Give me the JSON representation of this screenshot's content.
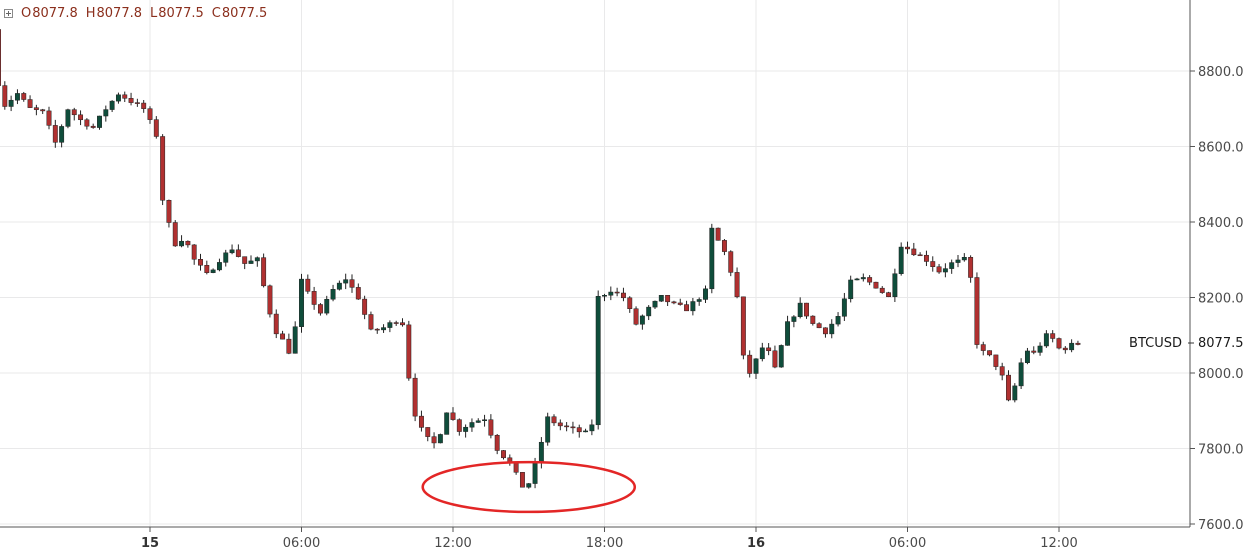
{
  "ohlc_legend": {
    "items": [
      {
        "key": "O",
        "value": "8077.8"
      },
      {
        "key": "H",
        "value": "8077.8"
      },
      {
        "key": "L",
        "value": "8077.5"
      },
      {
        "key": "C",
        "value": "8077.5"
      }
    ]
  },
  "price_label": {
    "symbol": "BTCUSD",
    "value": "8077.5"
  },
  "colors": {
    "up": "#0f4d3b",
    "down": "#b03030",
    "wick": "#222222",
    "annotation": "#e32626"
  },
  "chart_data": {
    "type": "candlestick",
    "title": "",
    "xlabel": "",
    "ylabel": "",
    "ylim": [
      7600,
      8900
    ],
    "y_ticks": [
      "7600.0",
      "7800.0",
      "8000.0",
      "8200.0",
      "8400.0",
      "8600.0",
      "8800.0"
    ],
    "x_ticks": [
      {
        "label": "15",
        "hour": 0,
        "bold": true
      },
      {
        "label": "06:00",
        "hour": 6,
        "bold": false
      },
      {
        "label": "12:00",
        "hour": 12,
        "bold": false
      },
      {
        "label": "18:00",
        "hour": 18,
        "bold": false
      },
      {
        "label": "16",
        "hour": 24,
        "bold": true
      },
      {
        "label": "06:00",
        "hour": 30,
        "bold": false
      },
      {
        "label": "12:00",
        "hour": 36,
        "bold": false
      }
    ],
    "xlim_hours": [
      -6,
      41.2
    ],
    "series": [
      {
        "price_path": [
          [
            -6.0,
            8910
          ],
          [
            -5.8,
            8780
          ],
          [
            -5.5,
            8710
          ],
          [
            -5.0,
            8740
          ],
          [
            -4.5,
            8700
          ],
          [
            -4.0,
            8690
          ],
          [
            -3.5,
            8610
          ],
          [
            -3.0,
            8700
          ],
          [
            -2.5,
            8670
          ],
          [
            -2.0,
            8650
          ],
          [
            -1.5,
            8700
          ],
          [
            -1.0,
            8740
          ],
          [
            -0.5,
            8720
          ],
          [
            0.0,
            8700
          ],
          [
            0.5,
            8630
          ],
          [
            0.6,
            8500
          ],
          [
            0.9,
            8420
          ],
          [
            1.2,
            8340
          ],
          [
            1.6,
            8360
          ],
          [
            2.0,
            8300
          ],
          [
            2.5,
            8260
          ],
          [
            3.0,
            8300
          ],
          [
            3.5,
            8330
          ],
          [
            4.0,
            8290
          ],
          [
            4.5,
            8300
          ],
          [
            5.0,
            8160
          ],
          [
            5.3,
            8100
          ],
          [
            5.6,
            8080
          ],
          [
            5.8,
            8050
          ],
          [
            6.0,
            8120
          ],
          [
            6.2,
            8250
          ],
          [
            6.5,
            8210
          ],
          [
            7.0,
            8160
          ],
          [
            7.5,
            8220
          ],
          [
            8.0,
            8250
          ],
          [
            8.5,
            8200
          ],
          [
            9.0,
            8110
          ],
          [
            9.5,
            8120
          ],
          [
            10.0,
            8140
          ],
          [
            10.3,
            8130
          ],
          [
            10.5,
            7990
          ],
          [
            10.7,
            7900
          ],
          [
            11.0,
            7850
          ],
          [
            11.3,
            7820
          ],
          [
            11.6,
            7810
          ],
          [
            12.0,
            7900
          ],
          [
            12.5,
            7850
          ],
          [
            13.0,
            7870
          ],
          [
            13.5,
            7880
          ],
          [
            14.0,
            7800
          ],
          [
            14.5,
            7760
          ],
          [
            15.0,
            7700
          ],
          [
            15.3,
            7710
          ],
          [
            15.6,
            7780
          ],
          [
            16.0,
            7880
          ],
          [
            16.5,
            7860
          ],
          [
            17.0,
            7850
          ],
          [
            17.5,
            7840
          ],
          [
            17.8,
            7870
          ],
          [
            18.0,
            8200
          ],
          [
            18.5,
            8220
          ],
          [
            19.0,
            8200
          ],
          [
            19.5,
            8130
          ],
          [
            20.0,
            8170
          ],
          [
            20.5,
            8200
          ],
          [
            21.0,
            8180
          ],
          [
            21.5,
            8170
          ],
          [
            22.0,
            8200
          ],
          [
            22.3,
            8220
          ],
          [
            22.5,
            8380
          ],
          [
            23.0,
            8320
          ],
          [
            23.3,
            8260
          ],
          [
            23.5,
            8200
          ],
          [
            23.7,
            8050
          ],
          [
            24.0,
            8000
          ],
          [
            24.3,
            8040
          ],
          [
            24.6,
            8080
          ],
          [
            25.0,
            8010
          ],
          [
            25.5,
            8130
          ],
          [
            26.0,
            8180
          ],
          [
            26.5,
            8130
          ],
          [
            27.0,
            8110
          ],
          [
            27.5,
            8150
          ],
          [
            28.0,
            8240
          ],
          [
            28.5,
            8250
          ],
          [
            29.0,
            8230
          ],
          [
            29.5,
            8200
          ],
          [
            30.0,
            8340
          ],
          [
            30.5,
            8320
          ],
          [
            31.0,
            8300
          ],
          [
            31.5,
            8270
          ],
          [
            32.0,
            8290
          ],
          [
            32.5,
            8300
          ],
          [
            32.8,
            8240
          ],
          [
            33.0,
            8080
          ],
          [
            33.3,
            8050
          ],
          [
            33.6,
            8040
          ],
          [
            34.0,
            7990
          ],
          [
            34.3,
            7910
          ],
          [
            34.7,
            8020
          ],
          [
            35.0,
            8060
          ],
          [
            35.3,
            8050
          ],
          [
            35.7,
            8100
          ],
          [
            36.0,
            8090
          ],
          [
            36.3,
            8060
          ],
          [
            36.6,
            8070
          ],
          [
            36.9,
            8077.5
          ]
        ]
      }
    ],
    "annotation": {
      "shape": "ellipse",
      "center_hour": 15.0,
      "center_price": 7698,
      "radius_hours": 4.2,
      "radius_price": 66
    }
  }
}
